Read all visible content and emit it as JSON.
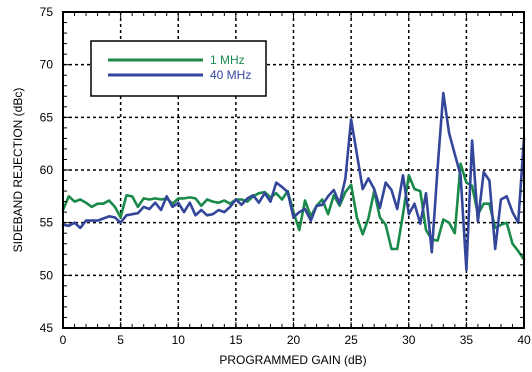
{
  "chart_data": {
    "type": "line",
    "title": "",
    "xlabel": "PROGRAMMED GAIN (dB)",
    "ylabel": "SIDEBAND REJECTION (dBc)",
    "xlim": [
      0,
      40
    ],
    "ylim": [
      45,
      75
    ],
    "x_ticks": [
      "0",
      "5",
      "10",
      "15",
      "20",
      "25",
      "30",
      "35",
      "40"
    ],
    "y_ticks": [
      "45",
      "50",
      "55",
      "60",
      "65",
      "70",
      "75"
    ],
    "grid": true,
    "legend_position": "top-left",
    "series": [
      {
        "name": "1 MHz",
        "color": "#1a8a4a",
        "points": [
          [
            0,
            56.2
          ],
          [
            0.5,
            57.5
          ],
          [
            1,
            57.0
          ],
          [
            1.5,
            57.2
          ],
          [
            2,
            56.9
          ],
          [
            2.5,
            56.5
          ],
          [
            3,
            56.8
          ],
          [
            3.5,
            56.8
          ],
          [
            4,
            57.1
          ],
          [
            4.5,
            56.5
          ],
          [
            5,
            55.5
          ],
          [
            5.5,
            57.6
          ],
          [
            6,
            57.5
          ],
          [
            6.5,
            56.5
          ],
          [
            7,
            57.3
          ],
          [
            7.5,
            57.2
          ],
          [
            8,
            57.3
          ],
          [
            8.5,
            57.2
          ],
          [
            9,
            57.3
          ],
          [
            9.5,
            56.8
          ],
          [
            10,
            57.3
          ],
          [
            10.5,
            57.3
          ],
          [
            11,
            57.4
          ],
          [
            11.5,
            57.3
          ],
          [
            12,
            56.6
          ],
          [
            12.5,
            57.2
          ],
          [
            13,
            57.0
          ],
          [
            13.5,
            56.9
          ],
          [
            14,
            57.1
          ],
          [
            14.5,
            56.8
          ],
          [
            15,
            57.2
          ],
          [
            15.5,
            57.2
          ],
          [
            16,
            57.0
          ],
          [
            16.5,
            57.5
          ],
          [
            17,
            57.8
          ],
          [
            17.5,
            57.9
          ],
          [
            18,
            57.4
          ],
          [
            18.5,
            57.8
          ],
          [
            19,
            57.2
          ],
          [
            19.5,
            58.0
          ],
          [
            20,
            56.0
          ],
          [
            20.5,
            54.3
          ],
          [
            21,
            57.1
          ],
          [
            21.5,
            55.6
          ],
          [
            22,
            56.6
          ],
          [
            22.5,
            57.2
          ],
          [
            23,
            55.8
          ],
          [
            23.5,
            57.6
          ],
          [
            24,
            56.6
          ],
          [
            24.5,
            57.9
          ],
          [
            25,
            58.6
          ],
          [
            25.5,
            55.5
          ],
          [
            26,
            53.9
          ],
          [
            26.5,
            55.4
          ],
          [
            27,
            58.0
          ],
          [
            27.5,
            55.5
          ],
          [
            28,
            54.8
          ],
          [
            28.5,
            52.5
          ],
          [
            29,
            52.5
          ],
          [
            29.5,
            55.8
          ],
          [
            30,
            59.5
          ],
          [
            30.5,
            58.2
          ],
          [
            31,
            58.0
          ],
          [
            31.5,
            54.3
          ],
          [
            32,
            53.4
          ],
          [
            32.5,
            53.3
          ],
          [
            33,
            55.3
          ],
          [
            33.5,
            55.0
          ],
          [
            34,
            54.0
          ],
          [
            34.5,
            60.6
          ],
          [
            35,
            58.8
          ],
          [
            35.5,
            58.5
          ],
          [
            36,
            55.8
          ],
          [
            36.5,
            56.8
          ],
          [
            37,
            56.8
          ],
          [
            37.5,
            54.5
          ],
          [
            38,
            54.8
          ],
          [
            38.5,
            55.0
          ],
          [
            39,
            53.0
          ],
          [
            39.5,
            52.3
          ],
          [
            40,
            51.5
          ]
        ]
      },
      {
        "name": "40 MHz",
        "color": "#33469a",
        "points": [
          [
            0,
            54.8
          ],
          [
            0.5,
            54.7
          ],
          [
            1,
            55.0
          ],
          [
            1.5,
            54.5
          ],
          [
            2,
            55.2
          ],
          [
            2.5,
            55.2
          ],
          [
            3,
            55.2
          ],
          [
            3.5,
            55.4
          ],
          [
            4,
            55.6
          ],
          [
            4.5,
            55.5
          ],
          [
            5,
            55.0
          ],
          [
            5.5,
            55.7
          ],
          [
            6,
            55.8
          ],
          [
            6.5,
            55.9
          ],
          [
            7,
            56.5
          ],
          [
            7.5,
            56.3
          ],
          [
            8,
            56.9
          ],
          [
            8.5,
            56.2
          ],
          [
            9,
            57.5
          ],
          [
            9.5,
            56.5
          ],
          [
            10,
            56.9
          ],
          [
            10.5,
            56.0
          ],
          [
            11,
            56.9
          ],
          [
            11.5,
            55.7
          ],
          [
            12,
            56.2
          ],
          [
            12.5,
            55.7
          ],
          [
            13,
            55.8
          ],
          [
            13.5,
            56.2
          ],
          [
            14,
            56.0
          ],
          [
            14.5,
            56.5
          ],
          [
            15,
            57.2
          ],
          [
            15.5,
            56.7
          ],
          [
            16,
            57.3
          ],
          [
            16.5,
            57.6
          ],
          [
            17,
            56.9
          ],
          [
            17.5,
            57.8
          ],
          [
            18,
            57.0
          ],
          [
            18.5,
            58.8
          ],
          [
            19,
            58.4
          ],
          [
            19.5,
            57.9
          ],
          [
            20,
            55.5
          ],
          [
            20.5,
            56.0
          ],
          [
            21,
            56.3
          ],
          [
            21.5,
            55.2
          ],
          [
            22,
            56.6
          ],
          [
            22.5,
            56.7
          ],
          [
            23,
            57.5
          ],
          [
            23.5,
            58.1
          ],
          [
            24,
            56.8
          ],
          [
            24.5,
            59.2
          ],
          [
            25,
            64.8
          ],
          [
            25.5,
            61.5
          ],
          [
            26,
            58.2
          ],
          [
            26.5,
            59.2
          ],
          [
            27,
            58.2
          ],
          [
            27.5,
            56.4
          ],
          [
            28,
            58.8
          ],
          [
            28.5,
            58.1
          ],
          [
            29,
            56.3
          ],
          [
            29.5,
            59.5
          ],
          [
            30,
            55.8
          ],
          [
            30.5,
            56.8
          ],
          [
            31,
            54.9
          ],
          [
            31.5,
            57.8
          ],
          [
            32,
            52.2
          ],
          [
            32.5,
            60.2
          ],
          [
            33,
            67.3
          ],
          [
            33.5,
            63.5
          ],
          [
            34,
            61.5
          ],
          [
            34.5,
            59.5
          ],
          [
            35,
            50.5
          ],
          [
            35.5,
            62.8
          ],
          [
            36,
            55.1
          ],
          [
            36.5,
            59.8
          ],
          [
            37,
            59.0
          ],
          [
            37.5,
            52.5
          ],
          [
            38,
            57.2
          ],
          [
            38.5,
            57.5
          ],
          [
            39,
            56.0
          ],
          [
            39.5,
            55.0
          ],
          [
            40,
            63.0
          ]
        ]
      }
    ]
  }
}
